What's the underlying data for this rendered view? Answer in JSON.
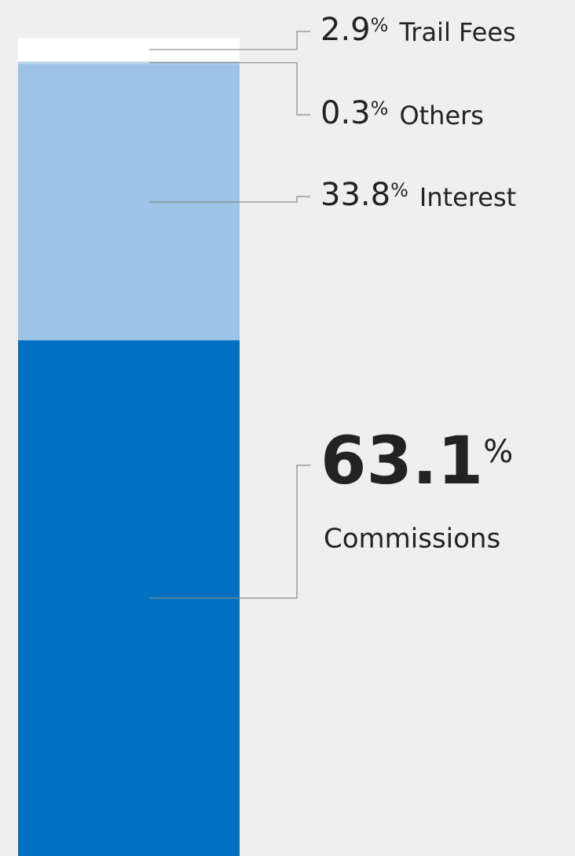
{
  "chart_data": {
    "type": "stacked_bar",
    "unit": "%",
    "series": [
      {
        "name": "Commissions",
        "color": "#0070c0",
        "values": [
          63.1
        ]
      },
      {
        "name": "Interest",
        "color": "#9dc3e6",
        "values": [
          33.8
        ]
      },
      {
        "name": "Others",
        "color": "#bdd7ee",
        "values": [
          0.3
        ]
      },
      {
        "name": "Trail Fees",
        "color": "#ffffff",
        "values": [
          2.9
        ]
      }
    ]
  }
}
